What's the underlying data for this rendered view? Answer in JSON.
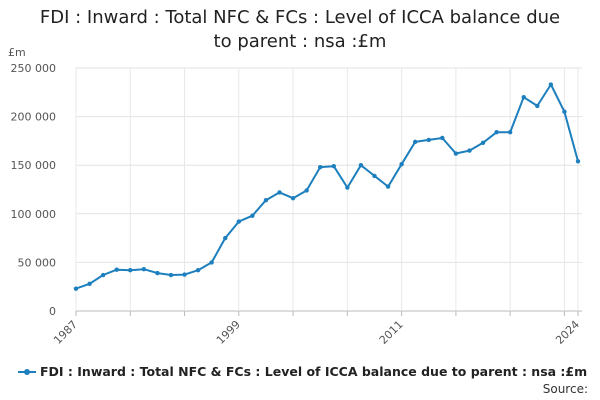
{
  "chart_data": {
    "type": "line",
    "title": "FDI : Inward : Total NFC & FCs : Level of ICCA balance due to parent : nsa :£m",
    "title_lines": [
      "FDI : Inward : Total NFC & FCs : Level of ICCA balance due",
      "to parent : nsa :£m"
    ],
    "ylabel": "£m",
    "ylim": [
      0,
      250000
    ],
    "yticks": [
      0,
      50000,
      100000,
      150000,
      200000,
      250000
    ],
    "ytick_labels": [
      "0",
      "50 000",
      "100 000",
      "150 000",
      "200 000",
      "250 000"
    ],
    "xlim": [
      1987,
      2024
    ],
    "xticks": [
      1987,
      1999,
      2011,
      2024
    ],
    "xtick_labels": [
      "1987",
      "1999",
      "2011",
      "2024"
    ],
    "grid": true,
    "legend_position": "bottom",
    "series": [
      {
        "name": "FDI : Inward : Total NFC & FCs : Level of ICCA balance due to parent : nsa :£m",
        "color": "#1d7fbd",
        "x": [
          1987,
          1988,
          1989,
          1990,
          1991,
          1992,
          1993,
          1994,
          1995,
          1996,
          1997,
          1998,
          1999,
          2000,
          2001,
          2002,
          2003,
          2004,
          2005,
          2006,
          2007,
          2008,
          2009,
          2010,
          2011,
          2012,
          2013,
          2014,
          2015,
          2016,
          2017,
          2018,
          2019,
          2020,
          2021,
          2022,
          2023,
          2024
        ],
        "values": [
          23000,
          28000,
          37000,
          42500,
          42000,
          43000,
          39000,
          37000,
          37500,
          42000,
          50000,
          75000,
          92000,
          98000,
          114000,
          122000,
          116000,
          124000,
          148000,
          149000,
          127000,
          150000,
          139000,
          128000,
          151000,
          174000,
          176000,
          178000,
          162000,
          165000,
          173000,
          184000,
          184000,
          220000,
          211000,
          233000,
          205000,
          154000
        ]
      }
    ]
  },
  "source_label": "Source:"
}
